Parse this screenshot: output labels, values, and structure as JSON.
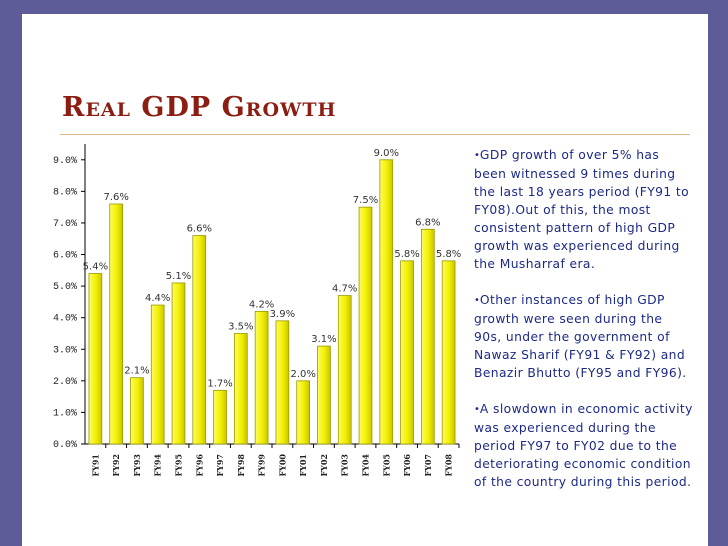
{
  "slide": {
    "title": "Real GDP Growth"
  },
  "bullets": [
    {
      "marker": "•",
      "text": "GDP growth of over 5% has been witnessed 9 times during the last 18 years period (FY91 to FY08).Out of this, the most consistent pattern of high GDP growth was experienced during the Musharraf era."
    },
    {
      "marker": "•",
      "text": "Other instances of high GDP growth were seen during the 90s, under the government of Nawaz Sharif (FY91 & FY92) and Benazir Bhutto (FY95 and FY96)."
    },
    {
      "marker": "•",
      "text": "A slowdown in economic activity was experienced during the period FY97 to FY02 due to the deteriorating economic condition of the country during this period."
    }
  ],
  "colors": {
    "bar_fill": "#f0f000",
    "bar_edge": "#9a9a00",
    "title": "#8b1d12",
    "bullet_text": "#1c2a86",
    "background": "#5e5c98"
  },
  "chart_data": {
    "type": "bar",
    "title": "",
    "xlabel": "",
    "ylabel": "",
    "categories": [
      "FY91",
      "FY92",
      "FY93",
      "FY94",
      "FY95",
      "FY96",
      "FY97",
      "FY98",
      "FY99",
      "FY00",
      "FY01",
      "FY02",
      "FY03",
      "FY04",
      "FY05",
      "FY06",
      "FY07",
      "FY08"
    ],
    "values": [
      5.4,
      7.6,
      2.1,
      4.4,
      5.1,
      6.6,
      1.7,
      3.5,
      4.2,
      3.9,
      2.0,
      3.1,
      4.7,
      7.5,
      9.0,
      5.8,
      6.8,
      5.8
    ],
    "data_labels": [
      "5.4%",
      "7.6%",
      "2.1%",
      "4.4%",
      "5.1%",
      "6.6%",
      "1.7%",
      "3.5%",
      "4.2%",
      "3.9%",
      "2.0%",
      "3.1%",
      "4.7%",
      "7.5%",
      "9.0%",
      "5.8%",
      "6.8%",
      "5.8%"
    ],
    "yticks": [
      0,
      1,
      2,
      3,
      4,
      5,
      6,
      7,
      8,
      9
    ],
    "ytick_labels": [
      "0.0%",
      "1.0%",
      "2.0%",
      "3.0%",
      "4.0%",
      "5.0%",
      "6.0%",
      "7.0%",
      "8.0%",
      "9.0%"
    ],
    "ylim": [
      0,
      9.5
    ],
    "grid": false,
    "legend": "none"
  }
}
